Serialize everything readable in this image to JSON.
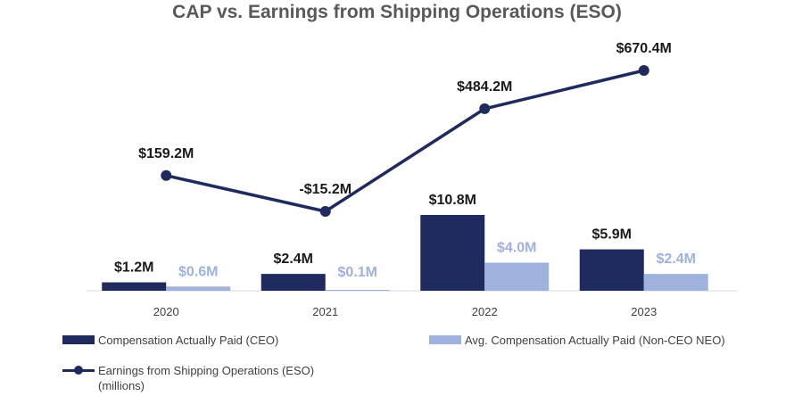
{
  "chart_data": {
    "type": "bar",
    "title": "CAP vs. Earnings from Shipping Operations (ESO)",
    "categories": [
      "2020",
      "2021",
      "2022",
      "2023"
    ],
    "series": [
      {
        "name": "Compensation Actually Paid (CEO)",
        "kind": "bar",
        "values": [
          1.2,
          2.4,
          10.8,
          5.9
        ],
        "labels": [
          "$1.2M",
          "$2.4M",
          "$10.8M",
          "$5.9M"
        ],
        "color": "#1f2a5e"
      },
      {
        "name": "Avg. Compensation Actually Paid (Non-CEO NEO)",
        "kind": "bar",
        "values": [
          0.6,
          0.1,
          4.0,
          2.4
        ],
        "labels": [
          "$0.6M",
          "$0.1M",
          "$4.0M",
          "$2.4M"
        ],
        "color": "#9fb2de"
      },
      {
        "name": "Earnings from Shipping Operations (ESO)",
        "name_line2": "(millions)",
        "kind": "line",
        "values": [
          159.2,
          -15.2,
          484.2,
          670.4
        ],
        "labels": [
          "$159.2M",
          "-$15.2M",
          "$484.2M",
          "$670.4M"
        ],
        "color": "#1f2a5e"
      }
    ],
    "bar_ylim": [
      0,
      25
    ],
    "line_ylim": [
      -500,
      670.4
    ],
    "grid": false,
    "legend_position": "bottom"
  }
}
